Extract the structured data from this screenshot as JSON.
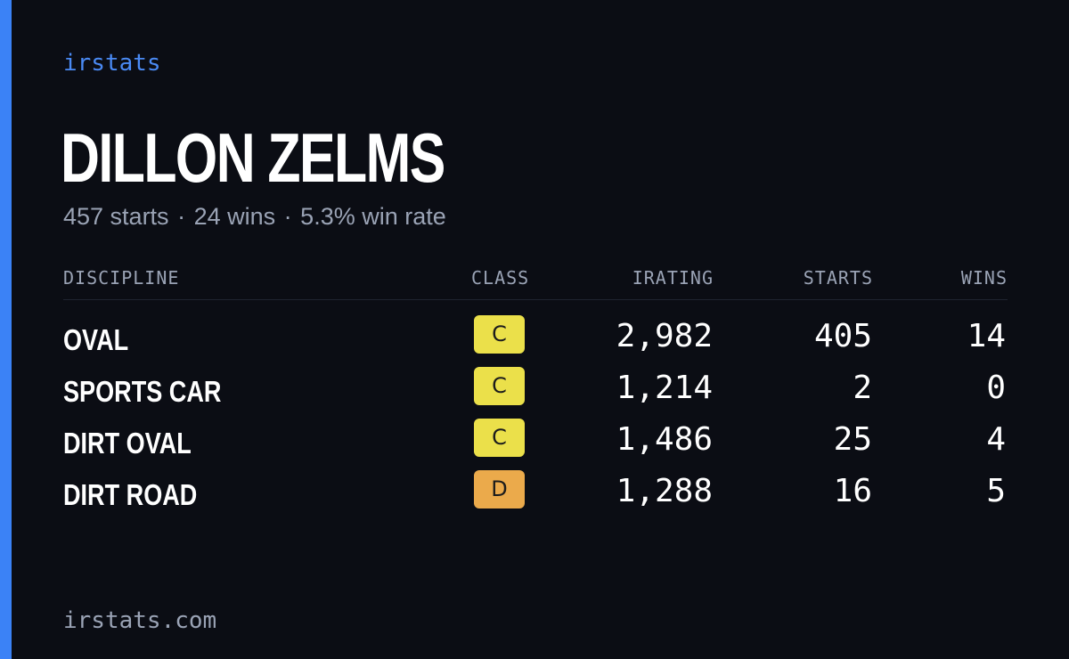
{
  "brand": "irstats",
  "driver": {
    "name": "DILLON ZELMS",
    "starts_text": "457 starts",
    "wins_text": "24 wins",
    "win_rate_text": "5.3% win rate",
    "separator": "·"
  },
  "table": {
    "headers": {
      "discipline": "DISCIPLINE",
      "class": "CLASS",
      "irating": "IRATING",
      "starts": "STARTS",
      "wins": "WINS"
    },
    "rows": [
      {
        "discipline": "OVAL",
        "class": "C",
        "class_color": "#ebe04a",
        "irating": "2,982",
        "starts": "405",
        "wins": "14"
      },
      {
        "discipline": "SPORTS CAR",
        "class": "C",
        "class_color": "#ebe04a",
        "irating": "1,214",
        "starts": "2",
        "wins": "0"
      },
      {
        "discipline": "DIRT OVAL",
        "class": "C",
        "class_color": "#ebe04a",
        "irating": "1,486",
        "starts": "25",
        "wins": "4"
      },
      {
        "discipline": "DIRT ROAD",
        "class": "D",
        "class_color": "#ebaa4b",
        "irating": "1,288",
        "starts": "16",
        "wins": "5"
      }
    ]
  },
  "footer": "irstats.com",
  "colors": {
    "background": "#0b0d14",
    "accent": "#3b82f6",
    "muted_text": "#9aa3b5"
  }
}
